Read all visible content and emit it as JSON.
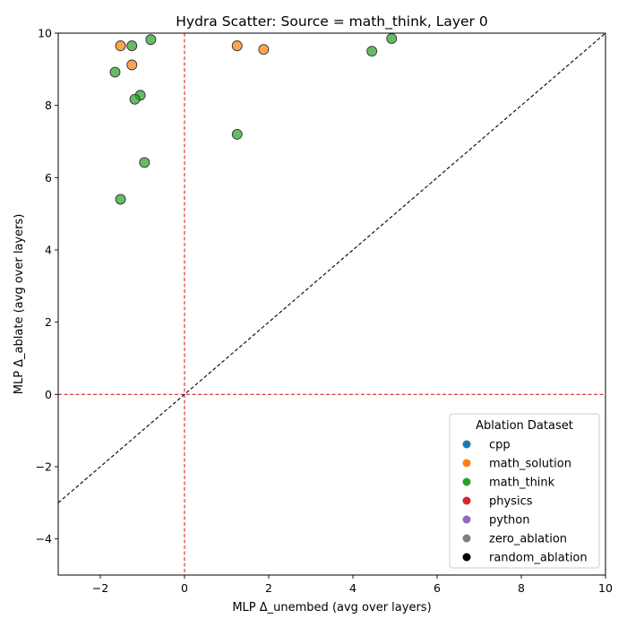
{
  "chart_data": {
    "type": "scatter",
    "title": "Hydra Scatter: Source = math_think, Layer 0",
    "xlabel": "MLP Δ_unembed (avg over layers)",
    "ylabel": "MLP Δ_ablate (avg over layers)",
    "xlim": [
      -3,
      10
    ],
    "ylim": [
      -5,
      10
    ],
    "xticks": [
      -2,
      0,
      2,
      4,
      6,
      8,
      10
    ],
    "xtick_labels": [
      "−2",
      "0",
      "2",
      "4",
      "6",
      "8",
      "10"
    ],
    "yticks": [
      -4,
      -2,
      0,
      2,
      4,
      6,
      8,
      10
    ],
    "ytick_labels": [
      "−4",
      "−2",
      "0",
      "2",
      "4",
      "6",
      "8",
      "10"
    ],
    "grid": false,
    "reference_lines": [
      {
        "type": "vertical",
        "x": 0,
        "color": "#d62728",
        "style": "dashed"
      },
      {
        "type": "horizontal",
        "y": 0,
        "color": "#d62728",
        "style": "dashed"
      },
      {
        "type": "diagonal",
        "slope": 1,
        "color": "#000000",
        "style": "dashed"
      }
    ],
    "legend": {
      "title": "Ablation Dataset",
      "placement": "lower-right",
      "entries": [
        {
          "name": "cpp",
          "color": "#1f77b4"
        },
        {
          "name": "math_solution",
          "color": "#ff7f0e"
        },
        {
          "name": "math_think",
          "color": "#2ca02c"
        },
        {
          "name": "physics",
          "color": "#d62728"
        },
        {
          "name": "python",
          "color": "#9467bd"
        },
        {
          "name": "zero_ablation",
          "color": "#7f7f7f"
        },
        {
          "name": "random_ablation",
          "color": "#000000"
        }
      ]
    },
    "series": [
      {
        "name": "math_solution",
        "color": "#ff7f0e",
        "points": [
          {
            "x": -1.52,
            "y": 9.65
          },
          {
            "x": -1.25,
            "y": 9.12
          },
          {
            "x": 1.25,
            "y": 9.65
          },
          {
            "x": 1.88,
            "y": 9.55
          }
        ]
      },
      {
        "name": "math_think",
        "color": "#2ca02c",
        "points": [
          {
            "x": -1.25,
            "y": 9.65
          },
          {
            "x": -0.8,
            "y": 9.82
          },
          {
            "x": -1.65,
            "y": 8.92
          },
          {
            "x": -1.05,
            "y": 8.28
          },
          {
            "x": -1.18,
            "y": 8.17
          },
          {
            "x": 1.25,
            "y": 7.2
          },
          {
            "x": -0.95,
            "y": 6.42
          },
          {
            "x": -1.52,
            "y": 5.4
          },
          {
            "x": 4.45,
            "y": 9.5
          },
          {
            "x": 4.92,
            "y": 9.85
          }
        ]
      }
    ]
  }
}
